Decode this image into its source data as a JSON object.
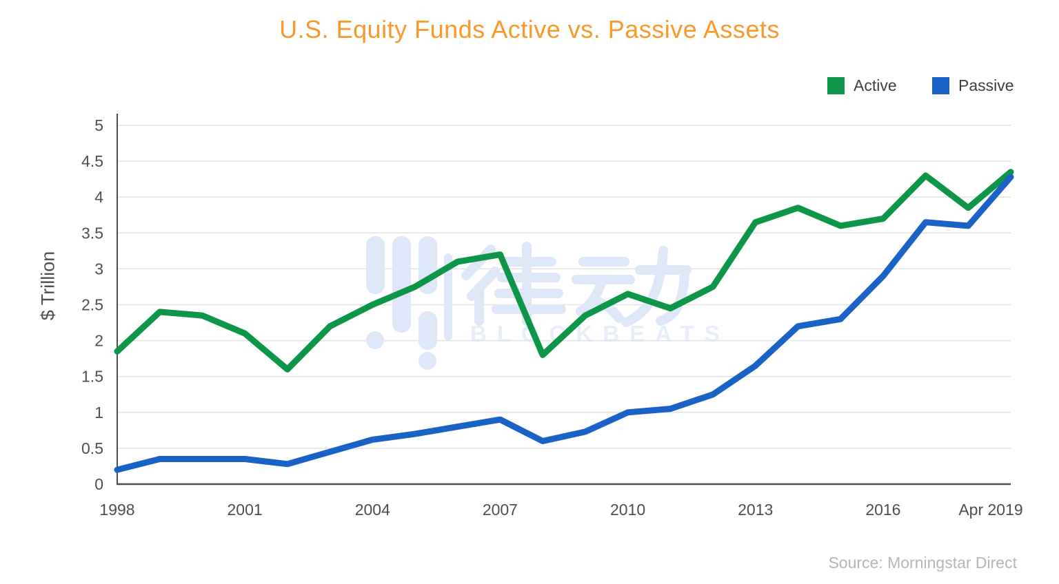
{
  "title": {
    "text": "U.S. Equity Funds Active vs. Passive Assets"
  },
  "legend": {
    "items": [
      {
        "label": "Active",
        "color": "#0E9648"
      },
      {
        "label": "Passive",
        "color": "#1A62C6"
      }
    ]
  },
  "y_axis": {
    "label": "$ Trillion",
    "ticks": [
      "0",
      "0.5",
      "1",
      "1.5",
      "2",
      "2.5",
      "3",
      "3.5",
      "4",
      "4.5",
      "5"
    ]
  },
  "x_axis": {
    "ticks": [
      {
        "label": "1998",
        "index": 0
      },
      {
        "label": "2001",
        "index": 3
      },
      {
        "label": "2004",
        "index": 6
      },
      {
        "label": "2007",
        "index": 9
      },
      {
        "label": "2010",
        "index": 12
      },
      {
        "label": "2013",
        "index": 15
      },
      {
        "label": "2016",
        "index": 18
      },
      {
        "label": "Apr 2019",
        "index": 21
      }
    ]
  },
  "source": {
    "text": "Source: Morningstar Direct"
  },
  "watermark": {
    "cn": "律动",
    "en": "BLOCKBEATS"
  },
  "colors": {
    "title": "#F8992A",
    "grid": "#e2e2e2",
    "axis": "#4d4d4d",
    "tick_text": "#4e4e4e",
    "source": "#b5b5b5",
    "watermark": "#dde7f8",
    "watermark_light": "#e7edf9"
  },
  "chart_data": {
    "type": "line",
    "categories": [
      "1998",
      "1999",
      "2000",
      "2001",
      "2002",
      "2003",
      "2004",
      "2005",
      "2006",
      "2007",
      "2008",
      "2009",
      "2010",
      "2011",
      "2012",
      "2013",
      "2014",
      "2015",
      "2016",
      "2017",
      "2018",
      "Apr 2019"
    ],
    "series": [
      {
        "name": "Active",
        "color": "#0E9648",
        "values": [
          1.85,
          2.4,
          2.35,
          2.1,
          1.6,
          2.2,
          2.5,
          2.75,
          3.1,
          3.2,
          1.8,
          2.35,
          2.65,
          2.45,
          2.75,
          3.65,
          3.85,
          3.6,
          3.7,
          4.3,
          3.85,
          4.35
        ]
      },
      {
        "name": "Passive",
        "color": "#1A62C6",
        "values": [
          0.2,
          0.35,
          0.35,
          0.35,
          0.28,
          0.45,
          0.62,
          0.7,
          0.8,
          0.9,
          0.6,
          0.73,
          1.0,
          1.05,
          1.25,
          1.65,
          2.2,
          2.3,
          2.9,
          3.65,
          3.6,
          4.28
        ]
      }
    ],
    "title": "U.S. Equity Funds Active vs. Passive Assets",
    "xlabel": "",
    "ylabel": "$ Trillion",
    "ylim": [
      0,
      5
    ],
    "grid_step": 0.5,
    "grid": true,
    "legend_position": "top-right"
  }
}
